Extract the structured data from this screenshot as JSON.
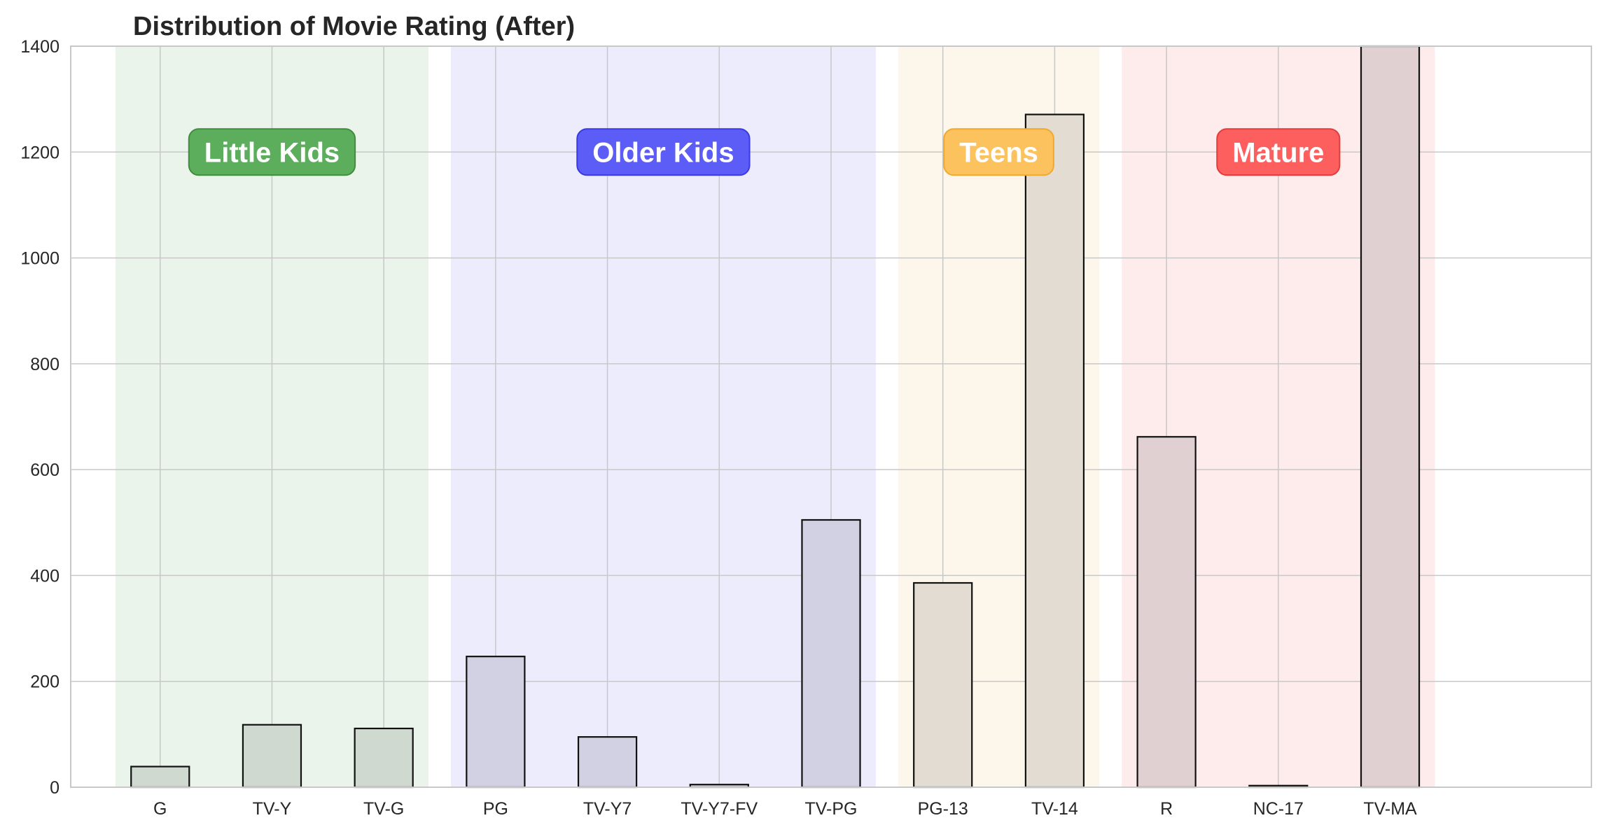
{
  "chart_data": {
    "type": "bar",
    "title": "Distribution of Movie Rating (After)",
    "xlabel": "",
    "ylabel": "",
    "ylim": [
      0,
      1400
    ],
    "yticks": [
      0,
      200,
      400,
      600,
      800,
      1000,
      1200,
      1400
    ],
    "grid": true,
    "categories": [
      "G",
      "TV-Y",
      "TV-G",
      "PG",
      "TV-Y7",
      "TV-Y7-FV",
      "TV-PG",
      "PG-13",
      "TV-14",
      "R",
      "NC-17",
      "TV-MA"
    ],
    "values": [
      39,
      118,
      111,
      247,
      95,
      5,
      505,
      386,
      1271,
      662,
      3,
      1400
    ],
    "bar_colors": [
      "#d0d9d0",
      "#d0d9d0",
      "#d0d9d0",
      "#d2d1e3",
      "#d2d1e3",
      "#d2d1e3",
      "#d2d1e3",
      "#e2dcd2",
      "#e2dcd2",
      "#e0d0d2",
      "#e0d0d2",
      "#e0d0d2"
    ],
    "groups": [
      {
        "label": "Little Kids",
        "start": 0,
        "end": 2,
        "band_color": "#eaf4eb",
        "badge_color": "#5cae5c",
        "badge_border": "#3e8e3e"
      },
      {
        "label": "Older Kids",
        "start": 3,
        "end": 6,
        "band_color": "#ececfd",
        "badge_color": "#5c5cf7",
        "badge_border": "#3a3ae0"
      },
      {
        "label": "Teens",
        "start": 7,
        "end": 8,
        "band_color": "#fdf6ea",
        "badge_color": "#fcc25e",
        "badge_border": "#f0a830"
      },
      {
        "label": "Mature",
        "start": 9,
        "end": 11,
        "band_color": "#feebeb",
        "badge_color": "#fd5e5e",
        "badge_border": "#e23c3c"
      }
    ]
  }
}
